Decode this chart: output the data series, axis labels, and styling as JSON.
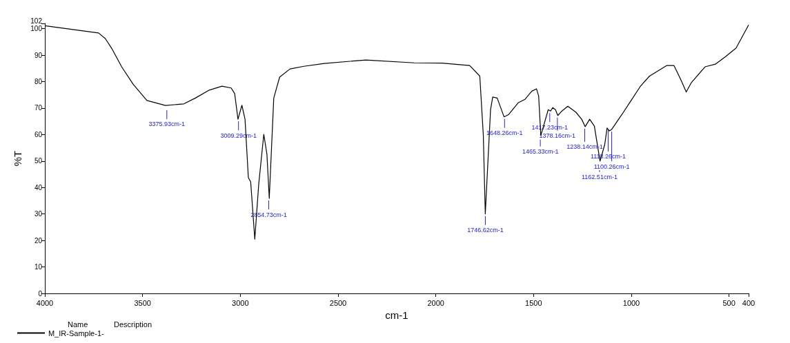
{
  "chart_data": {
    "type": "line",
    "xlabel": "cm-1",
    "ylabel": "%T",
    "xlim": [
      4000,
      400
    ],
    "ylim": [
      0,
      102
    ],
    "xticks": [
      4000,
      3500,
      3000,
      2500,
      2000,
      1500,
      1000,
      500,
      400
    ],
    "yticks": [
      0,
      10,
      20,
      30,
      40,
      50,
      60,
      70,
      80,
      90,
      100,
      102
    ],
    "grid": false,
    "legend": "bottom left",
    "legend_title": "Name",
    "marker": "none",
    "line_style": "solid",
    "series": [
      {
        "name": "M_IR-Sample-1-",
        "color": "#000000",
        "x": [
          4000,
          3725,
          3690,
          3655,
          3607,
          3548,
          3478,
          3383,
          3289,
          3230,
          3159,
          3094,
          3047,
          3029,
          3012,
          2992,
          2976,
          2959,
          2947,
          2926,
          2906,
          2880,
          2864,
          2852,
          2829,
          2799,
          2746,
          2675,
          2570,
          2357,
          2110,
          1968,
          1827,
          1775,
          1757,
          1747,
          1720,
          1709,
          1686,
          1651,
          1627,
          1579,
          1544,
          1509,
          1485,
          1474,
          1463,
          1449,
          1425,
          1413,
          1402,
          1388,
          1376,
          1355,
          1325,
          1284,
          1254,
          1236,
          1213,
          1189,
          1160,
          1136,
          1124,
          1112,
          1101,
          1077,
          1048,
          1001,
          954,
          907,
          818,
          782,
          747,
          719,
          694,
          623,
          570,
          517,
          464,
          400
        ],
        "values": [
          101.1,
          98.4,
          96.2,
          92.2,
          85.6,
          79.0,
          72.9,
          71.0,
          71.6,
          73.8,
          76.8,
          78.3,
          77.6,
          75.5,
          65.8,
          71.1,
          65.8,
          43.8,
          42.1,
          20.5,
          41.2,
          60.1,
          52.6,
          35.9,
          73.8,
          81.7,
          84.8,
          85.8,
          86.9,
          88.2,
          87.1,
          87.0,
          86.1,
          82.1,
          59.7,
          30.0,
          69.4,
          74.2,
          73.8,
          66.7,
          67.6,
          72.0,
          73.3,
          76.4,
          77.3,
          74.6,
          59.7,
          63.2,
          69.4,
          68.9,
          70.2,
          69.4,
          67.2,
          68.9,
          70.7,
          68.5,
          65.8,
          63.0,
          65.8,
          63.2,
          50.0,
          56.2,
          62.5,
          61.4,
          61.9,
          64.5,
          67.6,
          72.9,
          78.2,
          82.1,
          86.1,
          86.1,
          80.8,
          76.1,
          79.5,
          85.6,
          86.6,
          89.5,
          92.7,
          101.4
        ]
      }
    ],
    "annotations": [
      {
        "text": "3375.93cm-1",
        "x": 3375.93,
        "y": 70.0
      },
      {
        "text": "3009.29cm-1",
        "x": 3009.29,
        "y": 65.8
      },
      {
        "text": "2854.73cm-1",
        "x": 2854.73,
        "y": 35.9
      },
      {
        "text": "1746.62cm-1",
        "x": 1746.62,
        "y": 30.0
      },
      {
        "text": "1648.26cm-1",
        "x": 1648.26,
        "y": 66.7
      },
      {
        "text": "1465.33cm-1",
        "x": 1465.33,
        "y": 59.7
      },
      {
        "text": "1417.23cm-1",
        "x": 1417.23,
        "y": 68.9
      },
      {
        "text": "1378.16cm-1",
        "x": 1378.16,
        "y": 67.2
      },
      {
        "text": "1238.14cm-1",
        "x": 1238.14,
        "y": 63.0
      },
      {
        "text": "1162.51cm-1",
        "x": 1162.51,
        "y": 50.0
      },
      {
        "text": "1118.26cm-1",
        "x": 1118.26,
        "y": 62.5
      },
      {
        "text": "1100.26cm-1",
        "x": 1100.26,
        "y": 61.9
      },
      "Description"
    ]
  }
}
